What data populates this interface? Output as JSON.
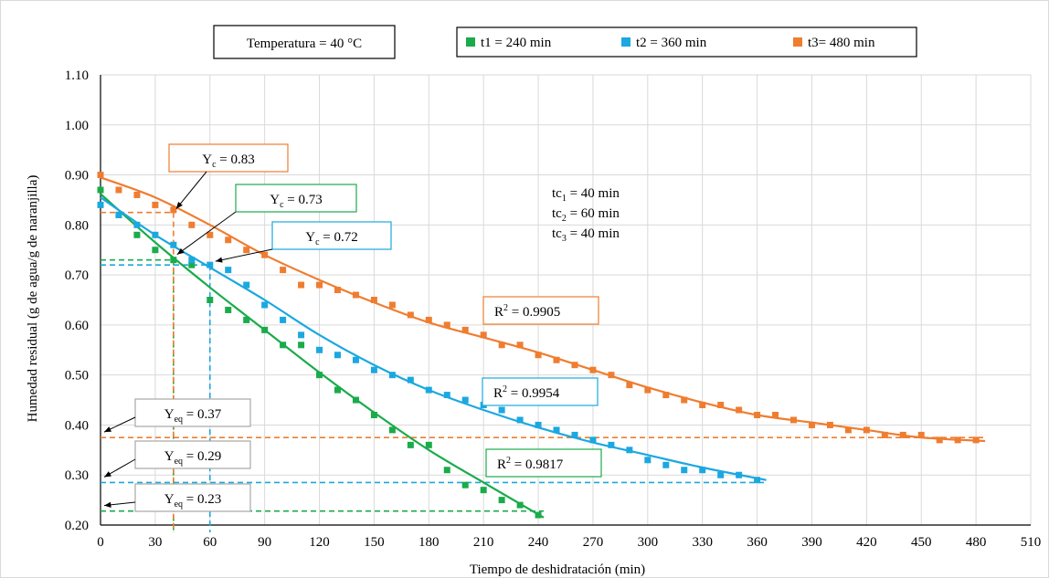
{
  "chart_data": {
    "type": "scatter",
    "temperature_label": "Temperatura = 40 °C",
    "xlabel": "Tiempo de deshidratación (min)",
    "ylabel": "Humedad residual (g de agua/g de naranjilla)",
    "xlim": [
      0,
      510
    ],
    "ylim": [
      0.2,
      1.1
    ],
    "x_ticks": [
      "0",
      "30",
      "60",
      "90",
      "120",
      "150",
      "180",
      "210",
      "240",
      "270",
      "300",
      "330",
      "360",
      "390",
      "420",
      "450",
      "480",
      "510"
    ],
    "y_ticks": [
      "0.20",
      "0.30",
      "0.40",
      "0.50",
      "0.60",
      "0.70",
      "0.80",
      "0.90",
      "1.00",
      "1.10"
    ],
    "grid": true,
    "legend_position": "top-center",
    "series": [
      {
        "name": "t1 = 240 min",
        "color": "#1aab4b",
        "points": [
          [
            0,
            0.87
          ],
          [
            10,
            0.82
          ],
          [
            20,
            0.78
          ],
          [
            30,
            0.75
          ],
          [
            40,
            0.73
          ],
          [
            50,
            0.72
          ],
          [
            60,
            0.65
          ],
          [
            70,
            0.63
          ],
          [
            80,
            0.61
          ],
          [
            90,
            0.59
          ],
          [
            100,
            0.56
          ],
          [
            110,
            0.56
          ],
          [
            120,
            0.5
          ],
          [
            130,
            0.47
          ],
          [
            140,
            0.45
          ],
          [
            150,
            0.42
          ],
          [
            160,
            0.39
          ],
          [
            170,
            0.36
          ],
          [
            180,
            0.36
          ],
          [
            190,
            0.31
          ],
          [
            200,
            0.28
          ],
          [
            210,
            0.27
          ],
          [
            220,
            0.25
          ],
          [
            230,
            0.24
          ],
          [
            240,
            0.22
          ]
        ],
        "curve": [
          [
            0,
            0.862
          ],
          [
            30,
            0.765
          ],
          [
            60,
            0.675
          ],
          [
            90,
            0.59
          ],
          [
            120,
            0.505
          ],
          [
            150,
            0.425
          ],
          [
            180,
            0.35
          ],
          [
            210,
            0.285
          ],
          [
            243,
            0.215
          ]
        ],
        "r2_label": "R",
        "r2_value": " = 0.9817",
        "tc_x": 40,
        "yc_label": "Y",
        "yc_sub": "c",
        "yc_value": " = 0.73",
        "yc": 0.73,
        "yeq_label": "Y",
        "yeq_sub": "eq",
        "yeq_value": " = 0.23",
        "yeq": 0.228
      },
      {
        "name": "t2 = 360 min",
        "color": "#1ba8e0",
        "points": [
          [
            0,
            0.84
          ],
          [
            10,
            0.82
          ],
          [
            20,
            0.8
          ],
          [
            30,
            0.78
          ],
          [
            40,
            0.76
          ],
          [
            50,
            0.73
          ],
          [
            60,
            0.72
          ],
          [
            70,
            0.71
          ],
          [
            80,
            0.68
          ],
          [
            90,
            0.64
          ],
          [
            100,
            0.61
          ],
          [
            110,
            0.58
          ],
          [
            120,
            0.55
          ],
          [
            130,
            0.54
          ],
          [
            140,
            0.53
          ],
          [
            150,
            0.51
          ],
          [
            160,
            0.5
          ],
          [
            170,
            0.49
          ],
          [
            180,
            0.47
          ],
          [
            190,
            0.46
          ],
          [
            200,
            0.45
          ],
          [
            210,
            0.44
          ],
          [
            220,
            0.43
          ],
          [
            230,
            0.41
          ],
          [
            240,
            0.4
          ],
          [
            250,
            0.39
          ],
          [
            260,
            0.38
          ],
          [
            270,
            0.37
          ],
          [
            280,
            0.36
          ],
          [
            290,
            0.35
          ],
          [
            300,
            0.33
          ],
          [
            310,
            0.32
          ],
          [
            320,
            0.31
          ],
          [
            330,
            0.31
          ],
          [
            340,
            0.3
          ],
          [
            350,
            0.3
          ],
          [
            360,
            0.29
          ]
        ],
        "curve": [
          [
            0,
            0.855
          ],
          [
            30,
            0.78
          ],
          [
            60,
            0.715
          ],
          [
            90,
            0.65
          ],
          [
            120,
            0.58
          ],
          [
            150,
            0.52
          ],
          [
            180,
            0.47
          ],
          [
            210,
            0.43
          ],
          [
            240,
            0.395
          ],
          [
            270,
            0.365
          ],
          [
            300,
            0.34
          ],
          [
            330,
            0.315
          ],
          [
            365,
            0.29
          ]
        ],
        "r2_label": "R",
        "r2_value": " = 0.9954",
        "tc_x": 60,
        "yc_label": "Y",
        "yc_sub": "c",
        "yc_value": " = 0.72",
        "yc": 0.72,
        "yeq_label": "Y",
        "yeq_sub": "eq",
        "yeq_value": " = 0.29",
        "yeq": 0.285
      },
      {
        "name": "t3= 480 min",
        "color": "#ef7d30",
        "points": [
          [
            0,
            0.9
          ],
          [
            10,
            0.87
          ],
          [
            20,
            0.86
          ],
          [
            30,
            0.84
          ],
          [
            40,
            0.83
          ],
          [
            50,
            0.8
          ],
          [
            60,
            0.78
          ],
          [
            70,
            0.77
          ],
          [
            80,
            0.75
          ],
          [
            90,
            0.74
          ],
          [
            100,
            0.71
          ],
          [
            110,
            0.68
          ],
          [
            120,
            0.68
          ],
          [
            130,
            0.67
          ],
          [
            140,
            0.66
          ],
          [
            150,
            0.65
          ],
          [
            160,
            0.64
          ],
          [
            170,
            0.62
          ],
          [
            180,
            0.61
          ],
          [
            190,
            0.6
          ],
          [
            200,
            0.59
          ],
          [
            210,
            0.58
          ],
          [
            220,
            0.56
          ],
          [
            230,
            0.56
          ],
          [
            240,
            0.54
          ],
          [
            250,
            0.53
          ],
          [
            260,
            0.52
          ],
          [
            270,
            0.51
          ],
          [
            280,
            0.5
          ],
          [
            290,
            0.48
          ],
          [
            300,
            0.47
          ],
          [
            310,
            0.46
          ],
          [
            320,
            0.45
          ],
          [
            330,
            0.44
          ],
          [
            340,
            0.44
          ],
          [
            350,
            0.43
          ],
          [
            360,
            0.42
          ],
          [
            370,
            0.42
          ],
          [
            380,
            0.41
          ],
          [
            390,
            0.4
          ],
          [
            400,
            0.4
          ],
          [
            410,
            0.39
          ],
          [
            420,
            0.39
          ],
          [
            430,
            0.38
          ],
          [
            440,
            0.38
          ],
          [
            450,
            0.38
          ],
          [
            460,
            0.37
          ],
          [
            470,
            0.37
          ],
          [
            480,
            0.37
          ]
        ],
        "curve": [
          [
            0,
            0.895
          ],
          [
            30,
            0.855
          ],
          [
            60,
            0.8
          ],
          [
            90,
            0.74
          ],
          [
            120,
            0.69
          ],
          [
            150,
            0.645
          ],
          [
            180,
            0.605
          ],
          [
            210,
            0.575
          ],
          [
            240,
            0.545
          ],
          [
            270,
            0.51
          ],
          [
            300,
            0.475
          ],
          [
            330,
            0.445
          ],
          [
            360,
            0.42
          ],
          [
            390,
            0.405
          ],
          [
            420,
            0.39
          ],
          [
            450,
            0.375
          ],
          [
            485,
            0.368
          ]
        ],
        "r2_label": "R",
        "r2_value": " = 0.9905",
        "tc_x": 40,
        "yc_label": "Y",
        "yc_sub": "c",
        "yc_value": " = 0.83",
        "yc": 0.825,
        "yeq_label": "Y",
        "yeq_sub": "eq",
        "yeq_value": " = 0.37",
        "yeq": 0.375
      }
    ],
    "tc_lines": [
      {
        "label": "tc",
        "sub": "1",
        "value": " = 40 min"
      },
      {
        "label": "tc",
        "sub": "2",
        "value": " = 60 min"
      },
      {
        "label": "tc",
        "sub": "3",
        "value": " = 40 min"
      }
    ]
  }
}
